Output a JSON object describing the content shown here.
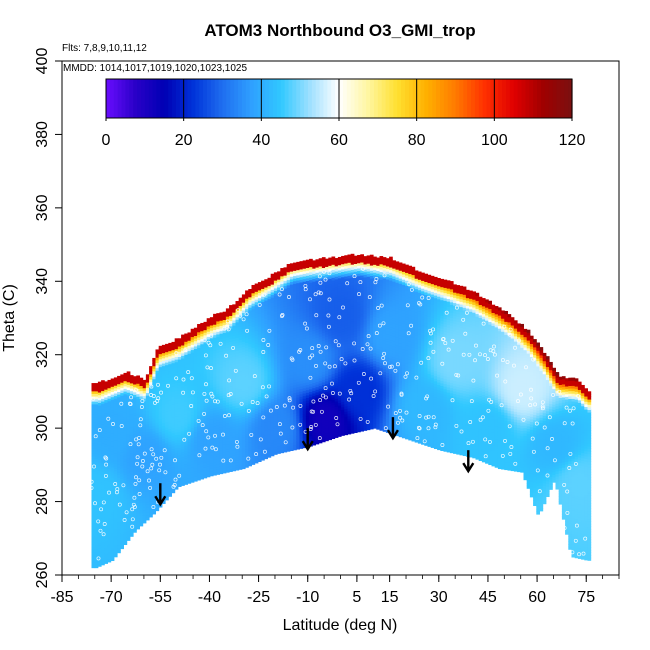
{
  "chart_data": {
    "type": "heatmap",
    "title": "ATOM3 Northbound O3_GMI_trop",
    "flights_label": "Flts: 7,8,9,10,11,12",
    "dates_label": "MMDD: 1014,1017,1019,1020,1023,1025",
    "xlabel": "Latitude (deg N)",
    "ylabel": "Theta (C)",
    "xlim": [
      -85,
      85
    ],
    "ylim": [
      260,
      400
    ],
    "x_ticks": [
      -85,
      -70,
      -55,
      -40,
      -25,
      -10,
      5,
      15,
      30,
      45,
      60,
      75
    ],
    "y_ticks": [
      260,
      280,
      300,
      320,
      340,
      360,
      380,
      400
    ],
    "colorbar": {
      "min": 0,
      "max": 120,
      "ticks": [
        0,
        20,
        40,
        60,
        80,
        100,
        120
      ],
      "colors": [
        "#6a0dff",
        "#2a00c8",
        "#0000b4",
        "#0033d9",
        "#1f6ef0",
        "#2fa0ff",
        "#30c8ff",
        "#9ee0ff",
        "#ffffff",
        "#fff6a0",
        "#ffe030",
        "#ffb000",
        "#ff7a00",
        "#ff3000",
        "#e00000",
        "#a00000",
        "#7a1010"
      ]
    },
    "data_top_boundary": [
      [
        -74,
        312
      ],
      [
        -66,
        315
      ],
      [
        -60,
        313
      ],
      [
        -56,
        322
      ],
      [
        -50,
        324
      ],
      [
        -45,
        327
      ],
      [
        -40,
        330
      ],
      [
        -35,
        332
      ],
      [
        -28,
        338
      ],
      [
        -22,
        341
      ],
      [
        -15,
        345
      ],
      [
        -5,
        346
      ],
      [
        5,
        347
      ],
      [
        15,
        346
      ],
      [
        25,
        342
      ],
      [
        32,
        340
      ],
      [
        40,
        337
      ],
      [
        47,
        333
      ],
      [
        52,
        330
      ],
      [
        57,
        326
      ],
      [
        62,
        320
      ],
      [
        66,
        314
      ],
      [
        72,
        313
      ],
      [
        75,
        310
      ]
    ],
    "data_bottom_boundary": [
      [
        75,
        264
      ],
      [
        70,
        265
      ],
      [
        65,
        286
      ],
      [
        60,
        276
      ],
      [
        55,
        288
      ],
      [
        48,
        289
      ],
      [
        40,
        292
      ],
      [
        30,
        294
      ],
      [
        20,
        297
      ],
      [
        10,
        300
      ],
      [
        0,
        298
      ],
      [
        -10,
        295
      ],
      [
        -20,
        293
      ],
      [
        -30,
        289
      ],
      [
        -40,
        287
      ],
      [
        -50,
        284
      ],
      [
        -57,
        277
      ],
      [
        -63,
        272
      ],
      [
        -70,
        264
      ],
      [
        -75,
        262
      ]
    ],
    "ozone_field_points": [
      {
        "lat": -75,
        "theta": 282,
        "o3": 44
      },
      {
        "lat": -70,
        "theta": 298,
        "o3": 40
      },
      {
        "lat": -60,
        "theta": 292,
        "o3": 38
      },
      {
        "lat": -50,
        "theta": 303,
        "o3": 46
      },
      {
        "lat": -40,
        "theta": 297,
        "o3": 38
      },
      {
        "lat": -30,
        "theta": 312,
        "o3": 48
      },
      {
        "lat": -20,
        "theta": 300,
        "o3": 34
      },
      {
        "lat": -10,
        "theta": 318,
        "o3": 35
      },
      {
        "lat": -5,
        "theta": 302,
        "o3": 12
      },
      {
        "lat": 0,
        "theta": 330,
        "o3": 28
      },
      {
        "lat": 5,
        "theta": 310,
        "o3": 22
      },
      {
        "lat": 15,
        "theta": 325,
        "o3": 38
      },
      {
        "lat": 25,
        "theta": 305,
        "o3": 42
      },
      {
        "lat": 35,
        "theta": 318,
        "o3": 50
      },
      {
        "lat": 45,
        "theta": 300,
        "o3": 44
      },
      {
        "lat": 55,
        "theta": 310,
        "o3": 56
      },
      {
        "lat": 65,
        "theta": 295,
        "o3": 42
      },
      {
        "lat": 72,
        "theta": 285,
        "o3": 48
      }
    ],
    "tropopause_arrows": [
      {
        "lat": -55,
        "theta": 285
      },
      {
        "lat": -10,
        "theta": 300
      },
      {
        "lat": 16,
        "theta": 303
      },
      {
        "lat": 39,
        "theta": 294
      }
    ]
  }
}
